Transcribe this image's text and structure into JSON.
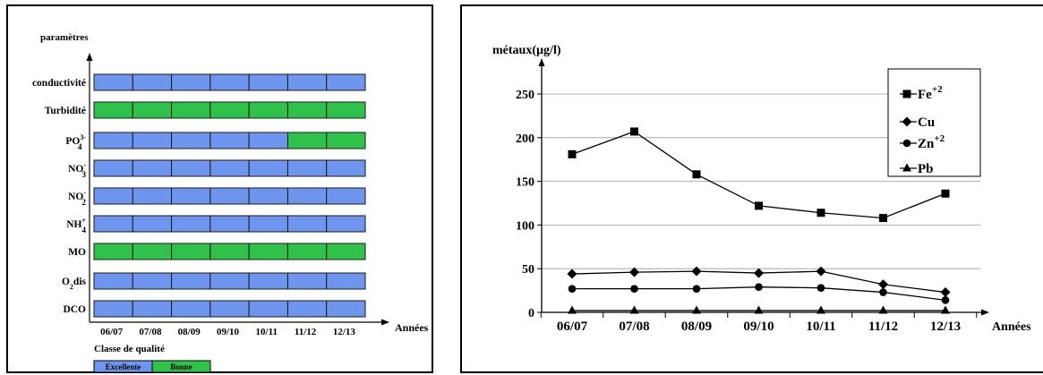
{
  "chart_data": [
    {
      "type": "table",
      "ylabel": "paramètres",
      "xlabel": "Années",
      "categories": [
        "06/07",
        "07/08",
        "08/09",
        "09/10",
        "10/11",
        "11/12",
        "12/13"
      ],
      "rows": [
        {
          "label": "conductivité",
          "cls": [
            "E",
            "E",
            "E",
            "E",
            "E",
            "E",
            "E"
          ]
        },
        {
          "label": "Turbidité",
          "cls": [
            "B",
            "B",
            "B",
            "B",
            "B",
            "B",
            "B"
          ]
        },
        {
          "label": "PO",
          "sup": "3-",
          "sub": "4",
          "cls": [
            "E",
            "E",
            "E",
            "E",
            "E",
            "B",
            "B"
          ]
        },
        {
          "label": "NO",
          "sup": "-",
          "sub": "3",
          "cls": [
            "E",
            "E",
            "E",
            "E",
            "E",
            "E",
            "E"
          ]
        },
        {
          "label": "NO",
          "sup": "-",
          "sub": "2",
          "cls": [
            "E",
            "E",
            "E",
            "E",
            "E",
            "E",
            "E"
          ]
        },
        {
          "label": "NH",
          "sup": "+",
          "sub": "4",
          "cls": [
            "E",
            "E",
            "E",
            "E",
            "E",
            "E",
            "E"
          ]
        },
        {
          "label": "MO",
          "cls": [
            "B",
            "B",
            "B",
            "B",
            "B",
            "B",
            "B"
          ]
        },
        {
          "label": "O",
          "sub": "2",
          "suffix": "dis",
          "cls": [
            "E",
            "E",
            "E",
            "E",
            "E",
            "E",
            "E"
          ]
        },
        {
          "label": "DCO",
          "cls": [
            "E",
            "E",
            "E",
            "E",
            "E",
            "E",
            "E"
          ]
        }
      ],
      "legend_title": "Classe de qualité",
      "legend": [
        {
          "key": "E",
          "label": "Excellente",
          "color": "#6f96ee"
        },
        {
          "key": "B",
          "label": "Bonne",
          "color": "#2ec24a"
        }
      ]
    },
    {
      "type": "line",
      "ylabel": "métaux(µg/l)",
      "xlabel": "Années",
      "categories": [
        "06/07",
        "07/08",
        "08/09",
        "09/10",
        "10/11",
        "11/12",
        "12/13"
      ],
      "ylim": [
        0,
        270
      ],
      "yticks": [
        0,
        50,
        100,
        150,
        200,
        250
      ],
      "grid": true,
      "legend_position": "top-right",
      "series": [
        {
          "name": "Fe",
          "sup": "+2",
          "marker": "square",
          "values": [
            181,
            207,
            158,
            122,
            114,
            108,
            136
          ]
        },
        {
          "name": "Cu",
          "marker": "diamond",
          "values": [
            44,
            46,
            47,
            45,
            47,
            32,
            23
          ]
        },
        {
          "name": "Zn",
          "sup": "+2",
          "marker": "circle",
          "values": [
            27,
            27,
            27,
            29,
            28,
            23,
            14
          ]
        },
        {
          "name": "Pb",
          "marker": "triangle",
          "values": [
            2,
            2,
            2,
            2,
            2,
            2,
            2
          ]
        }
      ]
    }
  ]
}
